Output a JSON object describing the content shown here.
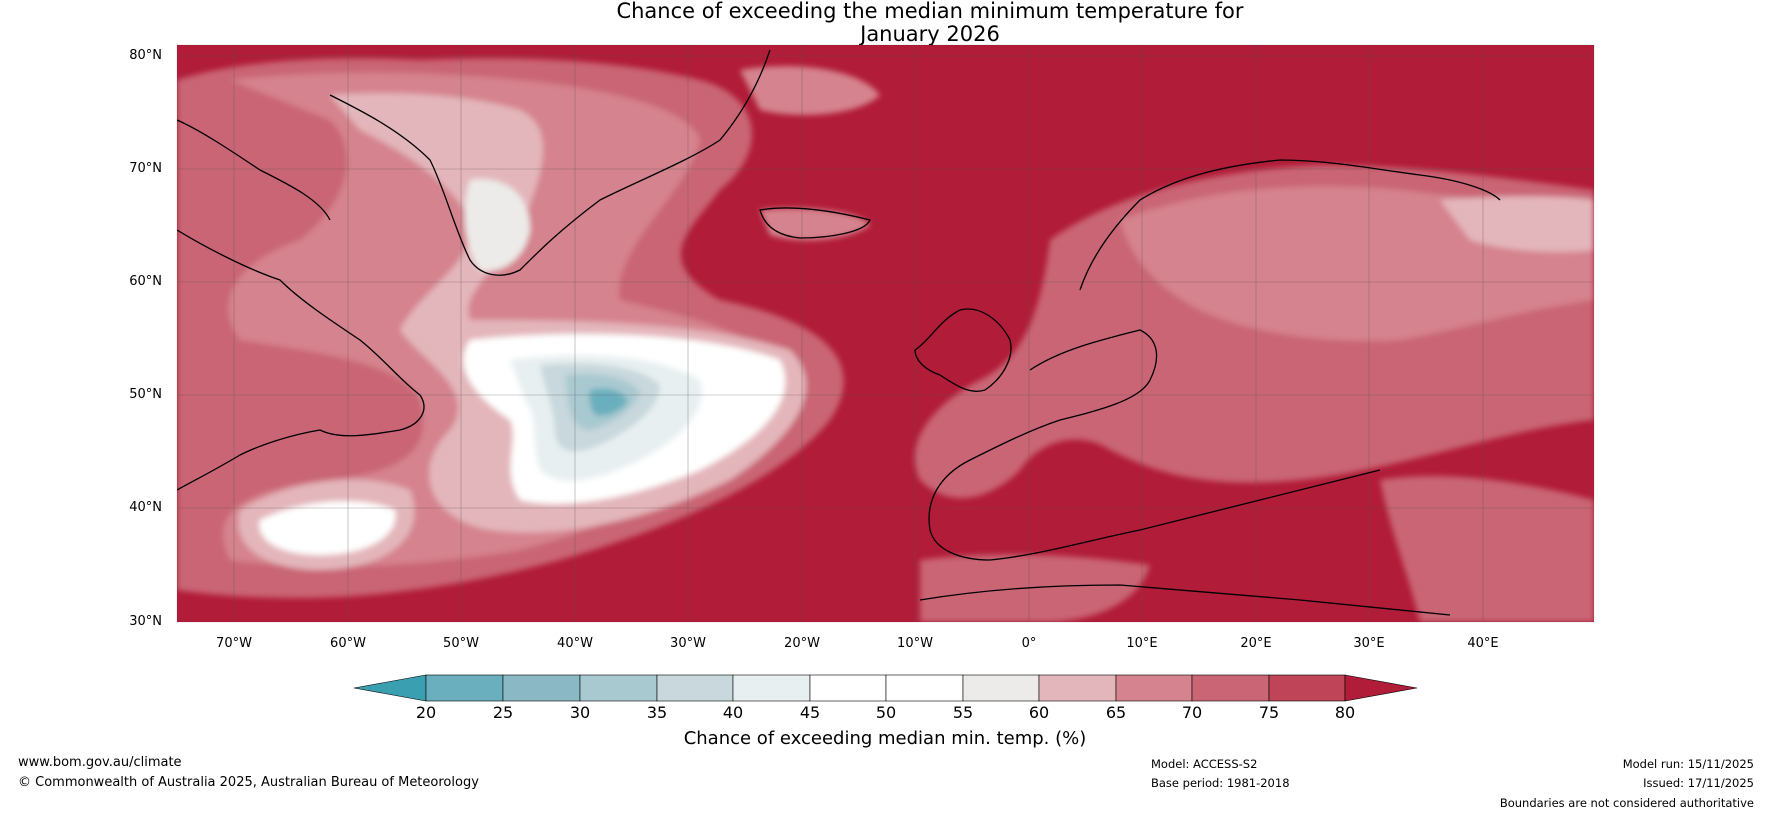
{
  "title_line1": "Chance of exceeding the median minimum temperature for",
  "title_line2": "January 2026",
  "lat_labels": [
    "80°N",
    "70°N",
    "60°N",
    "50°N",
    "40°N",
    "30°N"
  ],
  "lon_labels": [
    "70°W",
    "60°W",
    "50°W",
    "40°W",
    "30°W",
    "20°W",
    "10°W",
    "0°",
    "10°E",
    "20°E",
    "30°E",
    "40°E"
  ],
  "colorbar": {
    "ticks": [
      "20",
      "25",
      "30",
      "35",
      "40",
      "45",
      "50",
      "55",
      "60",
      "65",
      "70",
      "75",
      "80"
    ],
    "label": "Chance of exceeding median min. temp. (%)",
    "colors": [
      "#3a9fb0",
      "#6aafbd",
      "#8ab9c5",
      "#a9c9d0",
      "#c8d8dc",
      "#e8eff0",
      "#ffffff",
      "#ffffff",
      "#ecebe9",
      "#e3b6bb",
      "#d5838e",
      "#c96574",
      "#bf4457",
      "#b11c38"
    ]
  },
  "footer": {
    "url": "www.bom.gov.au/climate",
    "copyright": "© Commonwealth of Australia 2025, Australian Bureau of Meteorology",
    "model": "Model: ACCESS-S2",
    "base_period": "Base period: 1981-2018",
    "model_run": "Model run: 15/11/2025",
    "issued": "Issued: 17/11/2025",
    "disclaimer": "Boundaries are not considered authoritative"
  }
}
